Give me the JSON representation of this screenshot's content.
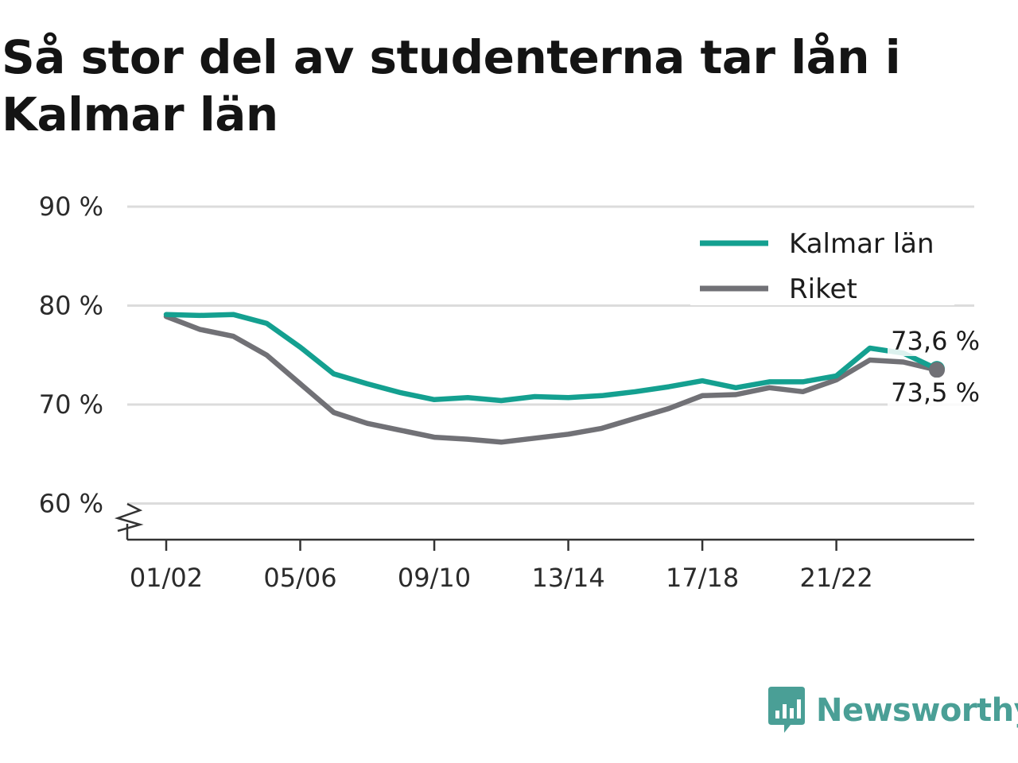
{
  "title": "Så stor del av studenterna tar lån i Kalmar län",
  "brand": {
    "name": "Newsworthy",
    "icon": "newsworthy-logo-icon",
    "color": "#4a9f96"
  },
  "chart_data": {
    "type": "line",
    "title": "Så stor del av studenterna tar lån i Kalmar län",
    "xlabel": "",
    "ylabel": "",
    "x": [
      "01/02",
      "02/03",
      "03/04",
      "04/05",
      "05/06",
      "06/07",
      "07/08",
      "08/09",
      "09/10",
      "10/11",
      "11/12",
      "12/13",
      "13/14",
      "14/15",
      "15/16",
      "16/17",
      "17/18",
      "18/19",
      "19/20",
      "20/21",
      "21/22",
      "22/23",
      "23/24",
      "24/25"
    ],
    "x_tick_labels": [
      "01/02",
      "05/06",
      "09/10",
      "13/14",
      "17/18",
      "21/22"
    ],
    "y_ticks": [
      60,
      70,
      80,
      90
    ],
    "y_tick_suffix": " %",
    "y_tick_labels": [
      "60 %",
      "70 %",
      "80 %",
      "90 %"
    ],
    "ylim": [
      56.5,
      90
    ],
    "y_axis_break": true,
    "grid": true,
    "legend_position": "top-right",
    "series": [
      {
        "name": "Kalmar län",
        "color": "#14a090",
        "values": [
          79.1,
          79.0,
          79.1,
          78.2,
          75.8,
          73.1,
          72.1,
          71.2,
          70.5,
          70.7,
          70.4,
          70.8,
          70.7,
          70.9,
          71.3,
          71.8,
          72.4,
          71.7,
          72.3,
          72.3,
          72.9,
          75.7,
          75.2,
          73.6
        ],
        "end_label": "73,6 %"
      },
      {
        "name": "Riket",
        "color": "#717176",
        "values": [
          78.9,
          77.6,
          76.9,
          75.0,
          72.1,
          69.2,
          68.1,
          67.4,
          66.7,
          66.5,
          66.2,
          66.6,
          67.0,
          67.6,
          68.6,
          69.6,
          70.9,
          71.0,
          71.7,
          71.3,
          72.5,
          74.5,
          74.3,
          73.5
        ],
        "end_label": "73,5 %"
      }
    ]
  }
}
